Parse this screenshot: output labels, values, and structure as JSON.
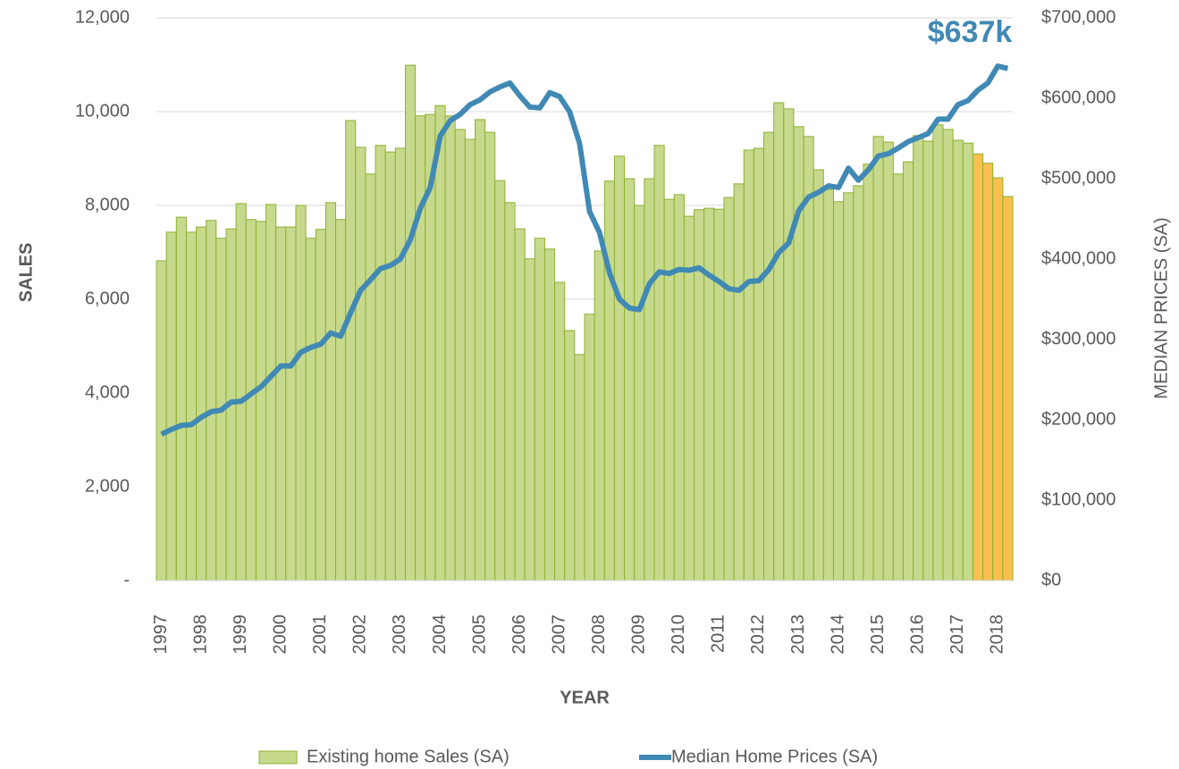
{
  "chart_data": {
    "type": "bar-line",
    "annotation": "$637k",
    "xlabel": "YEAR",
    "ylabel": "SALES",
    "y2label": "MEDIAN PRICES (SA)",
    "categories": [
      "1997",
      null,
      null,
      null,
      "1998",
      null,
      null,
      null,
      "1999",
      null,
      null,
      null,
      "2000",
      null,
      null,
      null,
      "2001",
      null,
      null,
      null,
      "2002",
      null,
      null,
      null,
      "2003",
      null,
      null,
      null,
      "2004",
      null,
      null,
      null,
      "2005",
      null,
      null,
      null,
      "2006",
      null,
      null,
      null,
      "2007",
      null,
      null,
      null,
      "2008",
      null,
      null,
      null,
      "2009",
      null,
      null,
      null,
      "2010",
      null,
      null,
      null,
      "2011",
      null,
      null,
      null,
      "2012",
      null,
      null,
      null,
      "2013",
      null,
      null,
      null,
      "2014",
      null,
      null,
      null,
      "2015",
      null,
      null,
      null,
      "2016",
      null,
      null,
      null,
      "2017",
      null,
      null,
      null,
      "2018",
      null
    ],
    "series": [
      {
        "name": "Existing home Sales (SA)",
        "type": "bar",
        "color": "#c6d98c",
        "stroke": "#8fb032",
        "values": [
          6820,
          7430,
          7750,
          7430,
          7540,
          7680,
          7300,
          7500,
          8040,
          7700,
          7660,
          8020,
          7540,
          7540,
          8000,
          7300,
          7490,
          8060,
          7700,
          9810,
          9240,
          8670,
          9280,
          9140,
          9220,
          10990,
          9910,
          9940,
          10130,
          9910,
          9620,
          9410,
          9830,
          9560,
          8530,
          8060,
          7500,
          6860,
          7300,
          7070,
          6360,
          5330,
          4820,
          5680,
          7030,
          8520,
          9050,
          8570,
          8000,
          8570,
          9280,
          8130,
          8230,
          7770,
          7910,
          7940,
          7920,
          8170,
          8460,
          9180,
          9220,
          9560,
          10190,
          10060,
          9680,
          9470,
          8760,
          8340,
          8080,
          8270,
          8420,
          8880,
          9470,
          9350,
          8670,
          8930,
          9490,
          9370,
          9720,
          9620,
          9390,
          9330,
          9100,
          8900,
          8590,
          8190
        ],
        "colors": [
          "#c6d98c",
          "#c6d98c",
          "#c6d98c",
          "#c6d98c",
          "#c6d98c",
          "#c6d98c",
          "#c6d98c",
          "#c6d98c",
          "#c6d98c",
          "#c6d98c",
          "#c6d98c",
          "#c6d98c",
          "#c6d98c",
          "#c6d98c",
          "#c6d98c",
          "#c6d98c",
          "#c6d98c",
          "#c6d98c",
          "#c6d98c",
          "#c6d98c",
          "#c6d98c",
          "#c6d98c",
          "#c6d98c",
          "#c6d98c",
          "#c6d98c",
          "#c6d98c",
          "#c6d98c",
          "#c6d98c",
          "#c6d98c",
          "#c6d98c",
          "#c6d98c",
          "#c6d98c",
          "#c6d98c",
          "#c6d98c",
          "#c6d98c",
          "#c6d98c",
          "#c6d98c",
          "#c6d98c",
          "#c6d98c",
          "#c6d98c",
          "#c6d98c",
          "#c6d98c",
          "#c6d98c",
          "#c6d98c",
          "#c6d98c",
          "#c6d98c",
          "#c6d98c",
          "#c6d98c",
          "#c6d98c",
          "#c6d98c",
          "#c6d98c",
          "#c6d98c",
          "#c6d98c",
          "#c6d98c",
          "#c6d98c",
          "#c6d98c",
          "#c6d98c",
          "#c6d98c",
          "#c6d98c",
          "#c6d98c",
          "#c6d98c",
          "#c6d98c",
          "#c6d98c",
          "#c6d98c",
          "#c6d98c",
          "#c6d98c",
          "#c6d98c",
          "#c6d98c",
          "#c6d98c",
          "#c6d98c",
          "#c6d98c",
          "#c6d98c",
          "#c6d98c",
          "#c6d98c",
          "#c6d98c",
          "#c6d98c",
          "#c6d98c",
          "#c6d98c",
          "#c6d98c",
          "#c6d98c",
          "#c6d98c",
          "#c6d98c",
          "#f9c04f",
          "#f9c04f",
          "#f9c04f",
          "#f9c04f"
        ]
      },
      {
        "name": "Median Home Prices (SA)",
        "type": "line",
        "axis": "y2",
        "color": "#4189b5",
        "values": [
          182000,
          188000,
          193000,
          194000,
          203000,
          210000,
          212000,
          222000,
          223000,
          232000,
          241000,
          254000,
          267000,
          267000,
          284000,
          290000,
          294000,
          308000,
          304000,
          333000,
          361000,
          374000,
          388000,
          392000,
          400000,
          424000,
          463000,
          489000,
          553000,
          572000,
          580000,
          592000,
          598000,
          608000,
          614000,
          619000,
          603000,
          589000,
          588000,
          607000,
          602000,
          583000,
          544000,
          459000,
          433000,
          383000,
          350000,
          339000,
          337000,
          369000,
          384000,
          382000,
          387000,
          386000,
          389000,
          380000,
          372000,
          363000,
          361000,
          372000,
          373000,
          387000,
          408000,
          420000,
          460000,
          477000,
          483000,
          491000,
          489000,
          513000,
          498000,
          511000,
          528000,
          531000,
          538000,
          546000,
          551000,
          556000,
          574000,
          574000,
          592000,
          597000,
          610000,
          619000,
          640000,
          637000
        ]
      }
    ],
    "ylim": [
      0,
      12000
    ],
    "yticks": [
      {
        "value": 0,
        "label": "-"
      },
      {
        "value": 2000,
        "label": "2,000"
      },
      {
        "value": 4000,
        "label": "4,000"
      },
      {
        "value": 6000,
        "label": "6,000"
      },
      {
        "value": 8000,
        "label": "8,000"
      },
      {
        "value": 10000,
        "label": "10,000"
      },
      {
        "value": 12000,
        "label": "12,000"
      }
    ],
    "y2lim": [
      0,
      700000
    ],
    "y2ticks": [
      {
        "value": 0,
        "label": "$0"
      },
      {
        "value": 100000,
        "label": "$100,000"
      },
      {
        "value": 200000,
        "label": "$200,000"
      },
      {
        "value": 300000,
        "label": "$300,000"
      },
      {
        "value": 400000,
        "label": "$400,000"
      },
      {
        "value": 500000,
        "label": "$500,000"
      },
      {
        "value": 600000,
        "label": "$600,000"
      },
      {
        "value": 700000,
        "label": "$700,000"
      }
    ],
    "grid": true
  }
}
